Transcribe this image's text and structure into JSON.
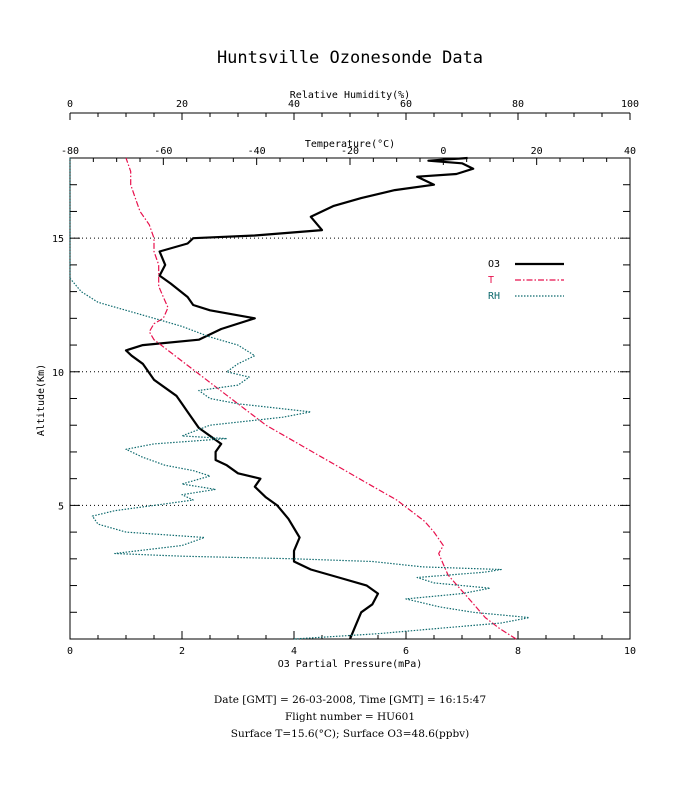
{
  "chart_data": {
    "type": "line",
    "title": "Huntsville Ozonesonde Data",
    "xlabel_bottom": "O3 Partial Pressure(mPa)",
    "xlabel_top_rh": "Relative Humidity(%)",
    "xlabel_top_temp": "Temperature(°C)",
    "ylabel": "Altitude(Km)",
    "axes": {
      "ozone_x_range": [
        0,
        10
      ],
      "ozone_ticks": [
        "0",
        "2",
        "4",
        "6",
        "8",
        "10"
      ],
      "rh_x_range": [
        0,
        100
      ],
      "rh_ticks": [
        "0",
        "20",
        "40",
        "60",
        "80",
        "100"
      ],
      "temp_x_range": [
        -80,
        40
      ],
      "temp_ticks": [
        "-80",
        "-60",
        "-40",
        "-20",
        "0",
        "20",
        "40"
      ],
      "y_range": [
        0,
        18
      ],
      "y_ticks": [
        "5",
        "10",
        "15"
      ]
    },
    "grid": "dotted horizontal lines at 5, 10, 15 km",
    "legend_position": "right",
    "series": [
      {
        "name": "O3",
        "color": "#000000",
        "style": "solid",
        "axis": "ozone",
        "points": [
          [
            5.0,
            0.0
          ],
          [
            5.1,
            0.5
          ],
          [
            5.2,
            1.0
          ],
          [
            5.4,
            1.3
          ],
          [
            5.5,
            1.7
          ],
          [
            5.3,
            2.0
          ],
          [
            4.8,
            2.3
          ],
          [
            4.3,
            2.6
          ],
          [
            4.0,
            2.9
          ],
          [
            4.0,
            3.3
          ],
          [
            4.1,
            3.8
          ],
          [
            3.9,
            4.5
          ],
          [
            3.7,
            5.0
          ],
          [
            3.5,
            5.3
          ],
          [
            3.3,
            5.7
          ],
          [
            3.4,
            6.0
          ],
          [
            3.0,
            6.2
          ],
          [
            2.8,
            6.5
          ],
          [
            2.6,
            6.7
          ],
          [
            2.6,
            7.0
          ],
          [
            2.7,
            7.3
          ],
          [
            2.5,
            7.6
          ],
          [
            2.3,
            7.9
          ],
          [
            2.2,
            8.2
          ],
          [
            2.1,
            8.5
          ],
          [
            2.0,
            8.8
          ],
          [
            1.9,
            9.1
          ],
          [
            1.7,
            9.4
          ],
          [
            1.5,
            9.7
          ],
          [
            1.4,
            10.0
          ],
          [
            1.3,
            10.3
          ],
          [
            1.1,
            10.6
          ],
          [
            1.0,
            10.8
          ],
          [
            1.3,
            11.0
          ],
          [
            2.3,
            11.2
          ],
          [
            2.7,
            11.6
          ],
          [
            3.3,
            12.0
          ],
          [
            2.5,
            12.3
          ],
          [
            2.2,
            12.5
          ],
          [
            2.1,
            12.8
          ],
          [
            1.8,
            13.3
          ],
          [
            1.6,
            13.6
          ],
          [
            1.7,
            14.0
          ],
          [
            1.6,
            14.5
          ],
          [
            2.1,
            14.8
          ],
          [
            2.2,
            15.0
          ],
          [
            3.3,
            15.1
          ],
          [
            4.5,
            15.3
          ],
          [
            4.3,
            15.8
          ],
          [
            4.7,
            16.2
          ],
          [
            5.2,
            16.5
          ],
          [
            5.8,
            16.8
          ],
          [
            6.5,
            17.0
          ],
          [
            6.2,
            17.3
          ],
          [
            6.9,
            17.4
          ],
          [
            7.2,
            17.6
          ],
          [
            7.0,
            17.8
          ],
          [
            6.4,
            17.9
          ],
          [
            7.1,
            18.0
          ]
        ]
      },
      {
        "name": "T",
        "color": "#e8114d",
        "style": "dash-dot",
        "axis": "temperature",
        "points": [
          [
            15.6,
            0.0
          ],
          [
            12.0,
            0.4
          ],
          [
            9.0,
            0.8
          ],
          [
            7.0,
            1.2
          ],
          [
            5.0,
            1.6
          ],
          [
            3.0,
            2.0
          ],
          [
            1.0,
            2.4
          ],
          [
            0.0,
            2.8
          ],
          [
            -1.0,
            3.2
          ],
          [
            0.0,
            3.5
          ],
          [
            -2.0,
            4.0
          ],
          [
            -4.0,
            4.4
          ],
          [
            -7.0,
            4.8
          ],
          [
            -10.0,
            5.2
          ],
          [
            -14.0,
            5.6
          ],
          [
            -18.0,
            6.0
          ],
          [
            -22.0,
            6.4
          ],
          [
            -26.0,
            6.8
          ],
          [
            -30.0,
            7.2
          ],
          [
            -34.0,
            7.6
          ],
          [
            -38.0,
            8.0
          ],
          [
            -41.0,
            8.4
          ],
          [
            -44.0,
            8.8
          ],
          [
            -47.0,
            9.2
          ],
          [
            -50.0,
            9.6
          ],
          [
            -53.0,
            10.0
          ],
          [
            -56.0,
            10.4
          ],
          [
            -59.0,
            10.8
          ],
          [
            -62.0,
            11.2
          ],
          [
            -63.0,
            11.5
          ],
          [
            -62.0,
            11.8
          ],
          [
            -60.0,
            12.0
          ],
          [
            -59.0,
            12.4
          ],
          [
            -60.0,
            12.8
          ],
          [
            -61.0,
            13.2
          ],
          [
            -61.0,
            13.6
          ],
          [
            -61.0,
            14.0
          ],
          [
            -62.0,
            14.5
          ],
          [
            -62.0,
            15.0
          ],
          [
            -63.0,
            15.5
          ],
          [
            -65.0,
            16.0
          ],
          [
            -66.0,
            16.5
          ],
          [
            -67.0,
            17.0
          ],
          [
            -67.0,
            17.5
          ],
          [
            -68.0,
            18.0
          ]
        ]
      },
      {
        "name": "RH",
        "color": "#0e6a6e",
        "style": "dotted",
        "axis": "rh",
        "points": [
          [
            40,
            0.0
          ],
          [
            55,
            0.2
          ],
          [
            66,
            0.4
          ],
          [
            77,
            0.6
          ],
          [
            82,
            0.8
          ],
          [
            72,
            1.0
          ],
          [
            66,
            1.2
          ],
          [
            60,
            1.5
          ],
          [
            70,
            1.7
          ],
          [
            75,
            1.9
          ],
          [
            65,
            2.1
          ],
          [
            62,
            2.3
          ],
          [
            74,
            2.5
          ],
          [
            77,
            2.6
          ],
          [
            63,
            2.7
          ],
          [
            54,
            2.9
          ],
          [
            40,
            3.0
          ],
          [
            20,
            3.1
          ],
          [
            8,
            3.2
          ],
          [
            20,
            3.5
          ],
          [
            24,
            3.8
          ],
          [
            10,
            4.0
          ],
          [
            5,
            4.3
          ],
          [
            4,
            4.6
          ],
          [
            8,
            4.8
          ],
          [
            15,
            5.0
          ],
          [
            22,
            5.2
          ],
          [
            20,
            5.4
          ],
          [
            26,
            5.6
          ],
          [
            20,
            5.8
          ],
          [
            25,
            6.1
          ],
          [
            22,
            6.3
          ],
          [
            17,
            6.5
          ],
          [
            13,
            6.8
          ],
          [
            10,
            7.1
          ],
          [
            15,
            7.3
          ],
          [
            28,
            7.5
          ],
          [
            20,
            7.6
          ],
          [
            25,
            8.0
          ],
          [
            38,
            8.3
          ],
          [
            43,
            8.5
          ],
          [
            30,
            8.8
          ],
          [
            25,
            9.0
          ],
          [
            23,
            9.3
          ],
          [
            30,
            9.5
          ],
          [
            32,
            9.8
          ],
          [
            28,
            10.0
          ],
          [
            30,
            10.3
          ],
          [
            33,
            10.6
          ],
          [
            30,
            11.0
          ],
          [
            25,
            11.3
          ],
          [
            20,
            11.7
          ],
          [
            15,
            12.0
          ],
          [
            10,
            12.3
          ],
          [
            5,
            12.6
          ],
          [
            2,
            13.0
          ],
          [
            0,
            13.5
          ],
          [
            0,
            14.5
          ],
          [
            0,
            15.5
          ],
          [
            0,
            16.5
          ],
          [
            0,
            17.5
          ],
          [
            0,
            18.0
          ]
        ]
      }
    ]
  },
  "footer": {
    "line1": "Date [GMT] = 26-03-2008,  Time [GMT] = 16:15:47",
    "line2": "Flight number = HU601",
    "line3": "Surface T=15.6(°C); Surface O3=48.6(ppbv)"
  }
}
